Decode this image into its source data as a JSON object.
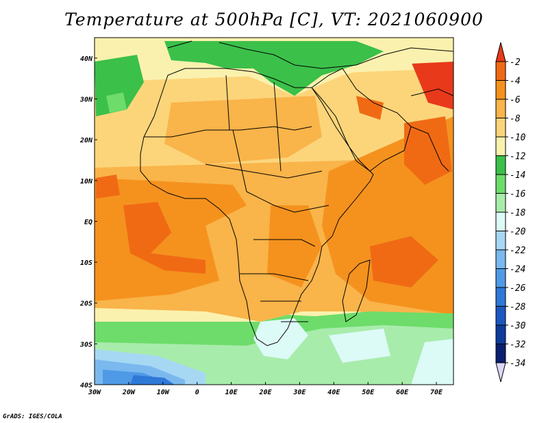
{
  "title": "Temperature at 500hPa [C], VT: 2021060900",
  "credit": "GrADS: IGES/COLA",
  "map": {
    "lon_range": [
      -30,
      75
    ],
    "lat_range": [
      -40,
      45
    ],
    "x_ticks": [
      "30W",
      "20W",
      "10W",
      "0",
      "10E",
      "20E",
      "30E",
      "40E",
      "50E",
      "60E",
      "70E"
    ],
    "y_ticks": [
      "40S",
      "30S",
      "20S",
      "10S",
      "EQ",
      "10N",
      "20N",
      "30N",
      "40N"
    ]
  },
  "colorbar": {
    "labels": [
      "-2",
      "-4",
      "-6",
      "-8",
      "-10",
      "-12",
      "-14",
      "-16",
      "-18",
      "-20",
      "-22",
      "-24",
      "-26",
      "-28",
      "-30",
      "-32",
      "-34"
    ],
    "colors": [
      "#e8391a",
      "#f06a14",
      "#f5921e",
      "#f9b44a",
      "#fcd57a",
      "#fbf1ae",
      "#3bc04a",
      "#6ddc6a",
      "#a8ecab",
      "#dcfaf6",
      "#a6d8f4",
      "#7ab8ee",
      "#4f9ae6",
      "#2e78d8",
      "#1d58c0",
      "#0f3c9c",
      "#0a1f6e",
      "#dcd8f8"
    ],
    "top_triangle_color": "#e8391a",
    "bottom_triangle_color": "#dcd8f8"
  }
}
